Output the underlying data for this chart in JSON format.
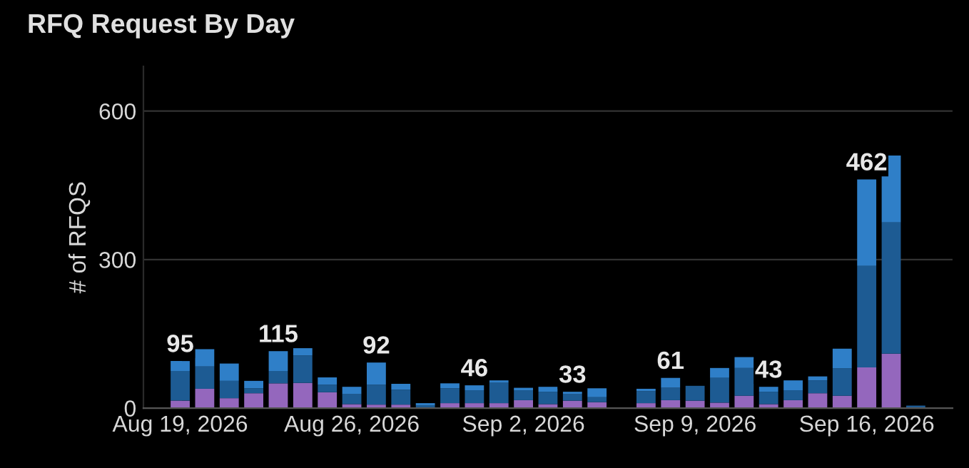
{
  "chart_data": {
    "type": "bar",
    "title": "RFQ Request By Day",
    "ylabel": "# of RFQS",
    "stacked": true,
    "x": [
      "2026-08-19",
      "2026-08-20",
      "2026-08-21",
      "2026-08-22",
      "2026-08-23",
      "2026-08-24",
      "2026-08-25",
      "2026-08-26",
      "2026-08-27",
      "2026-08-28",
      "2026-08-29",
      "2026-08-30",
      "2026-08-31",
      "2026-09-01",
      "2026-09-02",
      "2026-09-03",
      "2026-09-04",
      "2026-09-05",
      "2026-09-07",
      "2026-09-08",
      "2026-09-09",
      "2026-09-10",
      "2026-09-11",
      "2026-09-12",
      "2026-09-13",
      "2026-09-14",
      "2026-09-15",
      "2026-09-16",
      "2026-09-17",
      "2026-09-18"
    ],
    "series": [
      {
        "color": "#9467bd",
        "values": [
          15,
          39,
          20,
          30,
          50,
          51,
          32,
          8,
          7,
          7,
          null,
          10,
          10,
          10,
          16,
          8,
          15,
          12,
          10,
          16,
          15,
          11,
          25,
          8,
          16,
          30,
          25,
          82,
          110,
          0
        ]
      },
      {
        "color": "#1d5b93",
        "values": [
          60,
          45,
          35,
          10,
          25,
          55,
          15,
          20,
          40,
          30,
          5,
          30,
          26,
          41,
          20,
          25,
          13,
          10,
          24,
          25,
          30,
          50,
          56,
          25,
          20,
          26,
          55,
          205,
          265,
          5
        ]
      },
      {
        "color": "#2f7fc8",
        "values": [
          20,
          35,
          35,
          15,
          40,
          15,
          15,
          15,
          45,
          12,
          5,
          10,
          10,
          5,
          5,
          10,
          5,
          18,
          5,
          20,
          0,
          20,
          22,
          10,
          20,
          8,
          40,
          175,
          135,
          0
        ]
      }
    ],
    "totals": [
      "95",
      null,
      null,
      null,
      "115",
      null,
      null,
      null,
      "92",
      null,
      null,
      null,
      "46",
      null,
      null,
      null,
      "33",
      null,
      null,
      "61",
      null,
      null,
      null,
      "43",
      null,
      null,
      null,
      "462",
      null,
      null
    ],
    "xlim": [
      "2026-08-17T12:00",
      "2026-09-19T12:00"
    ],
    "xticks": [
      {
        "value": "2026-08-19",
        "label": "Aug 19, 2026"
      },
      {
        "value": "2026-08-26",
        "label": "Aug 26, 2026"
      },
      {
        "value": "2026-09-02",
        "label": "Sep 2, 2026"
      },
      {
        "value": "2026-09-09",
        "label": "Sep 9, 2026"
      },
      {
        "value": "2026-09-16",
        "label": "Sep 16, 2026"
      }
    ],
    "ylim": [
      0,
      690
    ],
    "yticks": [
      0,
      300,
      600
    ],
    "grid": "y",
    "legend": false
  }
}
